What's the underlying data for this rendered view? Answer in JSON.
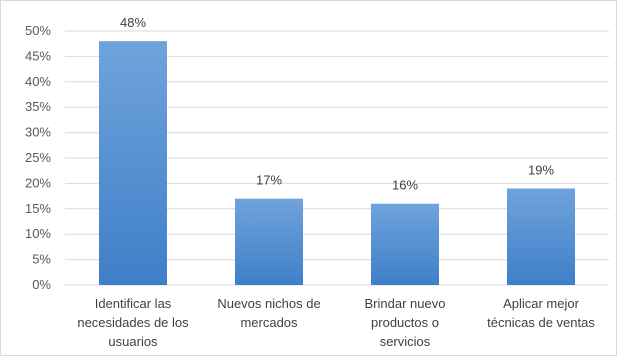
{
  "chart_data": {
    "type": "bar",
    "categories": [
      [
        "Identificar las",
        "necesidades de los",
        "usuarios"
      ],
      [
        "Nuevos nichos de",
        "mercados"
      ],
      [
        "Brindar nuevo",
        "productos o",
        "servicios"
      ],
      [
        "Aplicar mejor",
        "técnicas de ventas"
      ]
    ],
    "values": [
      48,
      17,
      16,
      19
    ],
    "data_labels": [
      "48%",
      "17%",
      "16%",
      "19%"
    ],
    "ylim": [
      0,
      50
    ],
    "y_ticks": [
      "0%",
      "5%",
      "10%",
      "15%",
      "20%",
      "25%",
      "30%",
      "35%",
      "40%",
      "45%",
      "50%"
    ],
    "grid": true,
    "legend": false,
    "colors": {
      "bar_top": "#6fa3dc",
      "bar_bottom": "#3f7fc8",
      "grid": "#d9d9d9",
      "axis_text": "#595959"
    }
  }
}
